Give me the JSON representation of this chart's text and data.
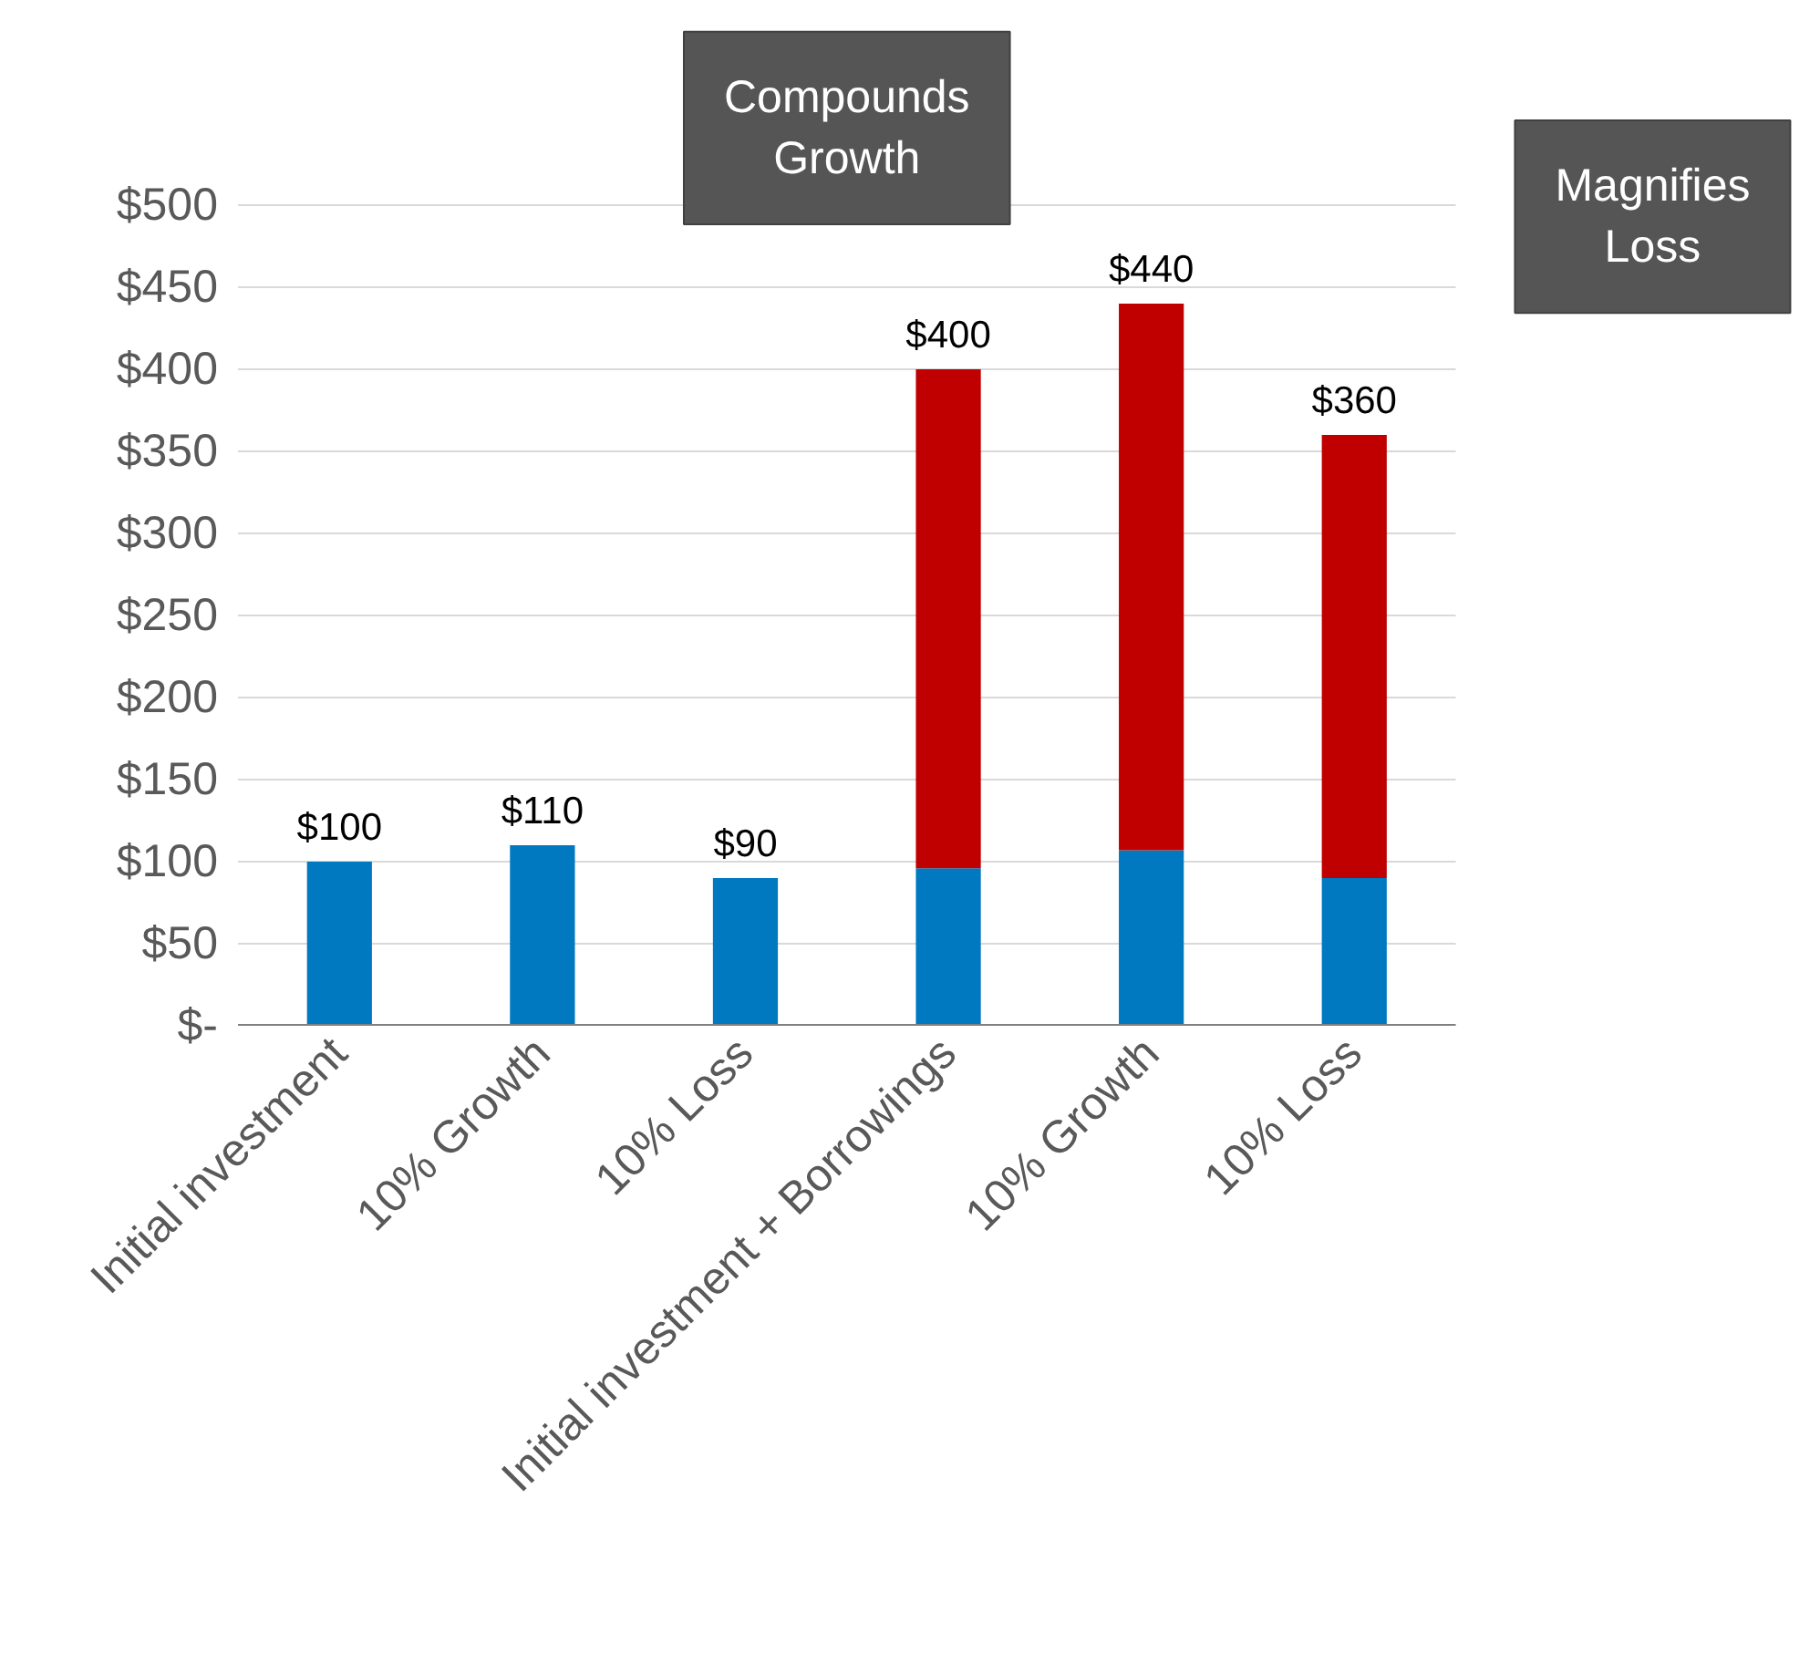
{
  "chart_data": {
    "type": "bar",
    "stacked": true,
    "categories": [
      "Initial investment",
      "10% Growth",
      "10% Loss",
      "Initial investment + Borrowings",
      "10% Growth",
      "10% Loss"
    ],
    "series": [
      {
        "color": "#0079c1",
        "values": [
          100,
          110,
          90,
          96,
          107,
          90
        ]
      },
      {
        "color": "#c00000",
        "values": [
          0,
          0,
          0,
          304,
          333,
          270
        ]
      }
    ],
    "totals": [
      "$100",
      "$110",
      "$90",
      "$400",
      "$440",
      "$360"
    ],
    "ylim": [
      0,
      500
    ],
    "yticks": [
      {
        "value": 0,
        "label": "$-"
      },
      {
        "value": 50,
        "label": "$50"
      },
      {
        "value": 100,
        "label": "$100"
      },
      {
        "value": 150,
        "label": "$150"
      },
      {
        "value": 200,
        "label": "$200"
      },
      {
        "value": 250,
        "label": "$250"
      },
      {
        "value": 300,
        "label": "$300"
      },
      {
        "value": 350,
        "label": "$350"
      },
      {
        "value": 400,
        "label": "$400"
      },
      {
        "value": 450,
        "label": "$450"
      },
      {
        "value": 500,
        "label": "$500"
      }
    ],
    "grid": "y",
    "annotations": [
      "Compounds\nGrowth",
      "Magnifies\nLoss"
    ]
  }
}
